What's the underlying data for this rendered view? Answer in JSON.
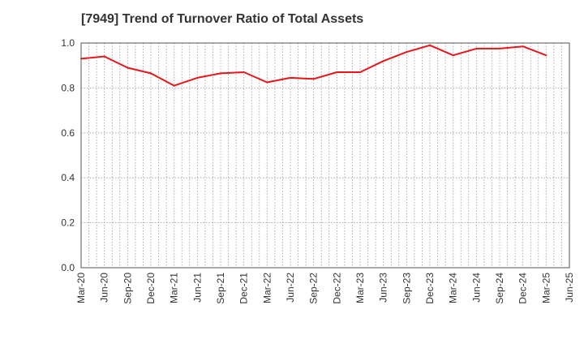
{
  "chart_data": {
    "type": "line",
    "title": "[7949]  Trend of Turnover Ratio of Total Assets",
    "xlabel": "",
    "ylabel": "",
    "ylim": [
      0.0,
      1.0
    ],
    "yticks": [
      "0.0",
      "0.2",
      "0.4",
      "0.6",
      "0.8",
      "1.0"
    ],
    "xticks": [
      "Mar-20",
      "Jun-20",
      "Sep-20",
      "Dec-20",
      "Mar-21",
      "Jun-21",
      "Sep-21",
      "Dec-21",
      "Mar-22",
      "Jun-22",
      "Sep-22",
      "Dec-22",
      "Mar-23",
      "Jun-23",
      "Sep-23",
      "Dec-23",
      "Mar-24",
      "Jun-24",
      "Sep-24",
      "Dec-24",
      "Mar-25",
      "Jun-25"
    ],
    "grid": "dotted-both",
    "series": [
      {
        "color": "#e8161b",
        "x": [
          "Mar-20",
          "Jun-20",
          "Sep-20",
          "Dec-20",
          "Mar-21",
          "Jun-21",
          "Sep-21",
          "Dec-21",
          "Mar-22",
          "Jun-22",
          "Sep-22",
          "Dec-22",
          "Mar-23",
          "Jun-23",
          "Sep-23",
          "Dec-23",
          "Mar-24",
          "Jun-24",
          "Sep-24",
          "Dec-24",
          "Mar-25"
        ],
        "values": [
          0.93,
          0.94,
          0.89,
          0.865,
          0.81,
          0.845,
          0.865,
          0.87,
          0.825,
          0.845,
          0.84,
          0.87,
          0.87,
          0.92,
          0.96,
          0.99,
          0.945,
          0.975,
          0.975,
          0.985,
          0.945
        ]
      }
    ]
  }
}
